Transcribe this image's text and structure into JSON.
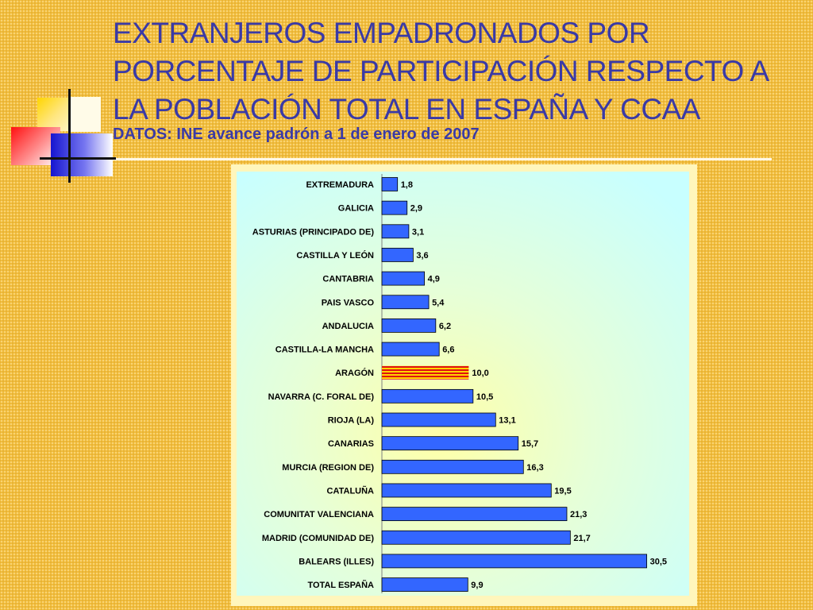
{
  "slide": {
    "title": "EXTRANJEROS EMPADRONADOS POR\nPORCENTAJE DE PARTICIPACIÓN RESPECTO A\nLA POBLACIÓN TOTAL EN ESPAÑA Y CCAA",
    "subtitle": "DATOS: INE avance padrón a 1 de enero de 2007"
  },
  "chart_data": {
    "type": "bar",
    "orientation": "horizontal",
    "categories": [
      "EXTREMADURA",
      "GALICIA",
      "ASTURIAS (PRINCIPADO DE)",
      "CASTILLA Y LEÓN",
      "CANTABRIA",
      "PAIS VASCO",
      "ANDALUCIA",
      "CASTILLA-LA MANCHA",
      "ARAGÓN",
      "NAVARRA (C. FORAL DE)",
      "RIOJA (LA)",
      "CANARIAS",
      "MURCIA (REGION DE)",
      "CATALUÑA",
      "COMUNITAT VALENCIANA",
      "MADRID (COMUNIDAD DE)",
      "BALEARS (ILLES)",
      "TOTAL ESPAÑA"
    ],
    "values": [
      1.8,
      2.9,
      3.1,
      3.6,
      4.9,
      5.4,
      6.2,
      6.6,
      10.0,
      10.5,
      13.1,
      15.7,
      16.3,
      19.5,
      21.3,
      21.7,
      30.5,
      9.9
    ],
    "data_labels": [
      "1,8",
      "2,9",
      "3,1",
      "3,6",
      "4,9",
      "5,4",
      "6,2",
      "6,6",
      "10,0",
      "10,5",
      "13,1",
      "15,7",
      "16,3",
      "19,5",
      "21,3",
      "21,7",
      "30,5",
      "9,9"
    ],
    "highlight_category": "ARAGÓN",
    "xlim": [
      0,
      32
    ],
    "grid": false,
    "legend": "none",
    "colors": {
      "bar": "#3366ff",
      "bar_edge": "#000000",
      "highlight_yellow": "#ffd400",
      "highlight_red": "#e01010",
      "plot_bg_start": "#ffffaa",
      "plot_bg_end": "#ccffff"
    }
  }
}
